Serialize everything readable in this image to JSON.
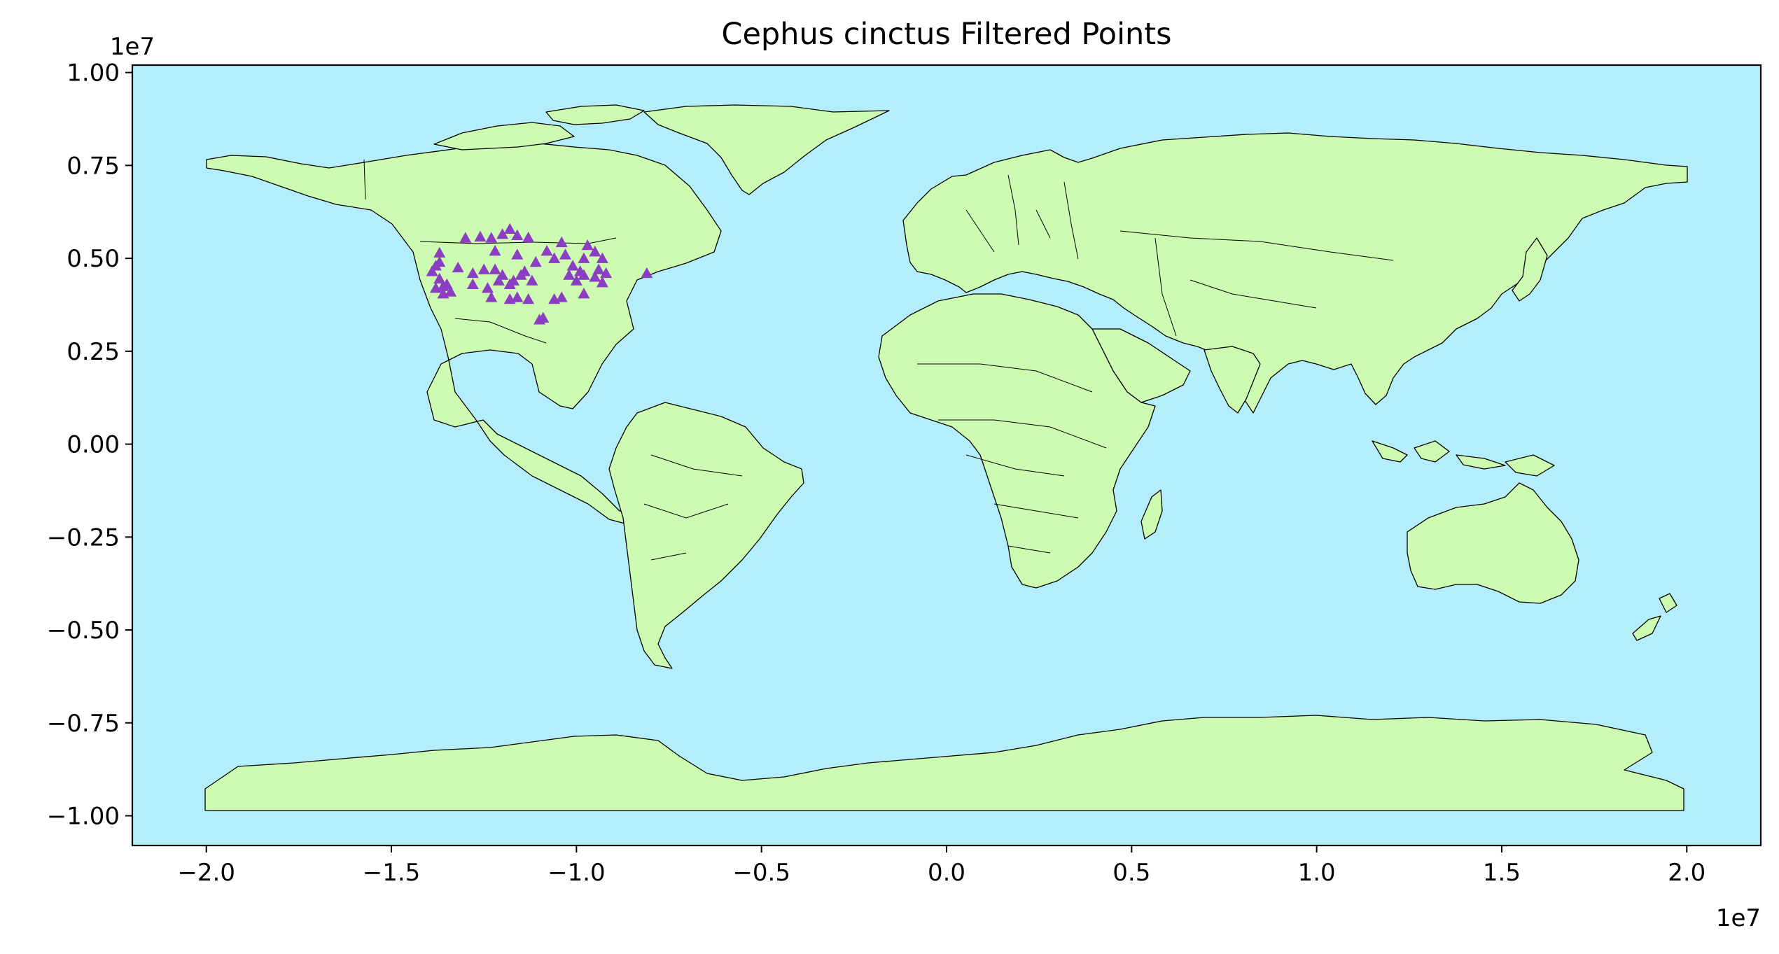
{
  "chart_data": {
    "type": "scatter",
    "title": "Cephus cinctus Filtered Points",
    "x_offset_label": "1e7",
    "y_offset_label": "1e7",
    "xlim": [
      -2.2,
      2.2
    ],
    "ylim": [
      -1.08,
      1.02
    ],
    "x_ticks": [
      -2.0,
      -1.5,
      -1.0,
      -0.5,
      0.0,
      0.5,
      1.0,
      1.5,
      2.0
    ],
    "x_tick_labels": [
      "−2.0",
      "−1.5",
      "−1.0",
      "−0.5",
      "0.0",
      "0.5",
      "1.0",
      "1.5",
      "2.0"
    ],
    "y_ticks": [
      1.0,
      0.75,
      0.5,
      0.25,
      0.0,
      -0.25,
      -0.5,
      -0.75,
      -1.0
    ],
    "y_tick_labels": [
      "1.00",
      "0.75",
      "0.50",
      "0.25",
      "0.00",
      "−0.25",
      "−0.50",
      "−0.75",
      "−1.00"
    ],
    "grid": false,
    "colors": {
      "ocean": "#b5eefb",
      "land": "#ccfbb1",
      "points": "#8b3ec2"
    },
    "marker": "triangle",
    "points": [
      [
        -1.3,
        0.555
      ],
      [
        -1.26,
        0.558
      ],
      [
        -1.23,
        0.555
      ],
      [
        -1.18,
        0.579
      ],
      [
        -1.16,
        0.562
      ],
      [
        -1.2,
        0.565
      ],
      [
        -1.13,
        0.556
      ],
      [
        -1.04,
        0.543
      ],
      [
        -0.97,
        0.535
      ],
      [
        -0.95,
        0.518
      ],
      [
        -0.93,
        0.5
      ],
      [
        -0.94,
        0.47
      ],
      [
        -0.95,
        0.45
      ],
      [
        -0.92,
        0.46
      ],
      [
        -0.93,
        0.435
      ],
      [
        -1.37,
        0.515
      ],
      [
        -1.38,
        0.48
      ],
      [
        -1.39,
        0.465
      ],
      [
        -1.37,
        0.445
      ],
      [
        -1.36,
        0.425
      ],
      [
        -1.38,
        0.42
      ],
      [
        -1.34,
        0.41
      ],
      [
        -1.36,
        0.405
      ],
      [
        -1.35,
        0.43
      ],
      [
        -1.37,
        0.49
      ],
      [
        -1.32,
        0.475
      ],
      [
        -1.28,
        0.46
      ],
      [
        -1.25,
        0.47
      ],
      [
        -1.22,
        0.47
      ],
      [
        -1.2,
        0.455
      ],
      [
        -1.17,
        0.44
      ],
      [
        -1.14,
        0.465
      ],
      [
        -1.11,
        0.49
      ],
      [
        -1.08,
        0.52
      ],
      [
        -1.06,
        0.5
      ],
      [
        -1.01,
        0.48
      ],
      [
        -0.99,
        0.465
      ],
      [
        -1.0,
        0.44
      ],
      [
        -0.98,
        0.455
      ],
      [
        -1.02,
        0.455
      ],
      [
        -1.12,
        0.44
      ],
      [
        -1.15,
        0.455
      ],
      [
        -1.18,
        0.43
      ],
      [
        -1.21,
        0.44
      ],
      [
        -1.24,
        0.42
      ],
      [
        -1.28,
        0.43
      ],
      [
        -1.23,
        0.395
      ],
      [
        -1.18,
        0.39
      ],
      [
        -1.16,
        0.395
      ],
      [
        -1.13,
        0.39
      ],
      [
        -1.06,
        0.39
      ],
      [
        -1.04,
        0.395
      ],
      [
        -0.98,
        0.405
      ],
      [
        -0.98,
        0.5
      ],
      [
        -1.09,
        0.34
      ],
      [
        -1.1,
        0.335
      ],
      [
        -0.81,
        0.46
      ],
      [
        -1.22,
        0.52
      ],
      [
        -1.16,
        0.51
      ],
      [
        -1.03,
        0.51
      ]
    ]
  }
}
